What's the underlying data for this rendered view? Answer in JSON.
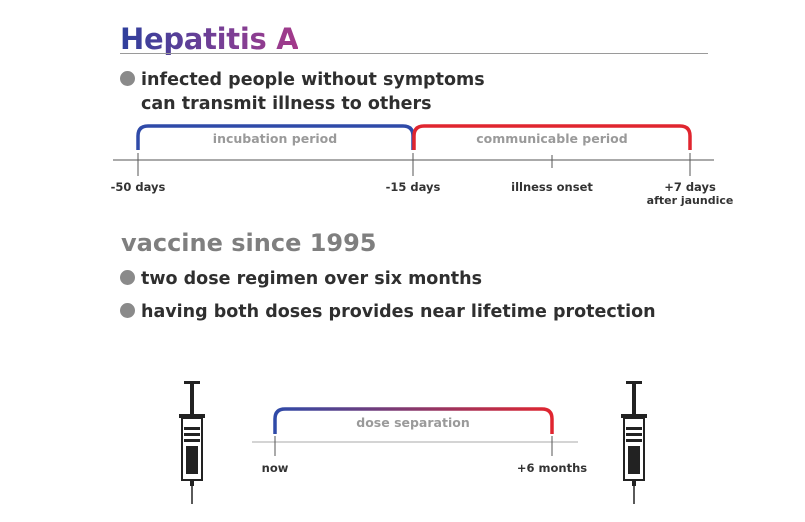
{
  "title": "Hepatitis A",
  "intro_bullet": {
    "line1": "infected people without symptoms",
    "line2": "can transmit illness to others"
  },
  "timeline": {
    "periods": [
      {
        "label": "incubation period",
        "color": "#2f4aa8"
      },
      {
        "label": "communicable period",
        "color": "#e0252f"
      }
    ],
    "ticks": [
      {
        "label": "-50 days"
      },
      {
        "label": "-15 days"
      },
      {
        "label": "illness onset"
      },
      {
        "label": "+7 days",
        "sublabel": "after jaundice"
      }
    ]
  },
  "vaccine": {
    "heading": "vaccine since 1995",
    "bullets": [
      "two dose regimen over six months",
      "having both doses provides near lifetime protection"
    ],
    "dose_timeline": {
      "label": "dose separation",
      "start_label": "now",
      "end_label": "+6 months",
      "gradient": [
        "#2f4aa8",
        "#e0252f"
      ]
    },
    "icons": [
      "syringe-icon",
      "syringe-icon"
    ]
  }
}
